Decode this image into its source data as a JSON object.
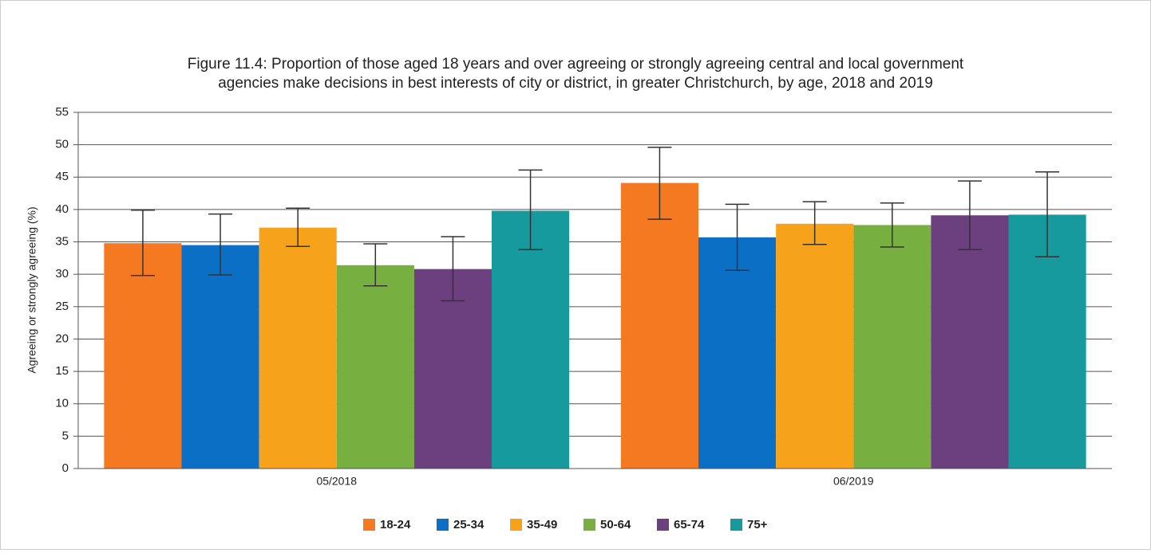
{
  "chart_data": {
    "type": "bar",
    "title": [
      "Figure 11.4: Proportion of those aged 18 years and over agreeing or strongly agreeing central and local government",
      "agencies make decisions in best interests of city or district, in greater Christchurch, by age, 2018 and 2019"
    ],
    "y_label": "Agreeing or strongly agreeing (%)",
    "categories": [
      "05/2018",
      "06/2019"
    ],
    "series": [
      {
        "name": "18-24",
        "color": "#f47920",
        "values": [
          34.8,
          44.1
        ],
        "ci_low": [
          29.8,
          38.5
        ],
        "ci_high": [
          39.9,
          49.6
        ]
      },
      {
        "name": "25-34",
        "color": "#0b6fc6",
        "values": [
          34.5,
          35.7
        ],
        "ci_low": [
          29.9,
          30.6
        ],
        "ci_high": [
          39.3,
          40.8
        ]
      },
      {
        "name": "35-49",
        "color": "#f7a21b",
        "values": [
          37.2,
          37.8
        ],
        "ci_low": [
          34.3,
          34.6
        ],
        "ci_high": [
          40.2,
          41.2
        ]
      },
      {
        "name": "50-64",
        "color": "#77b041",
        "values": [
          31.4,
          37.6
        ],
        "ci_low": [
          28.2,
          34.2
        ],
        "ci_high": [
          34.7,
          41.0
        ]
      },
      {
        "name": "65-74",
        "color": "#6c3f7f",
        "values": [
          30.8,
          39.1
        ],
        "ci_low": [
          25.9,
          33.8
        ],
        "ci_high": [
          35.8,
          44.4
        ]
      },
      {
        "name": "75+",
        "color": "#169a9e",
        "values": [
          39.8,
          39.2
        ],
        "ci_low": [
          33.8,
          32.7
        ],
        "ci_high": [
          46.1,
          45.8
        ]
      }
    ],
    "ylim": [
      0,
      55
    ],
    "yticks": [
      0,
      5,
      10,
      15,
      20,
      25,
      30,
      35,
      40,
      45,
      50,
      55
    ],
    "grid": true,
    "legend": "bottom"
  }
}
